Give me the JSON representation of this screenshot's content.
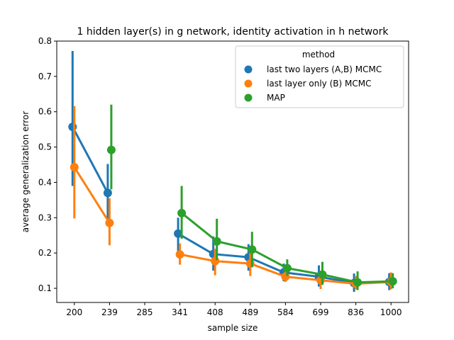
{
  "chart_data": {
    "type": "line",
    "title": "1 hidden layer(s) in g network, identity activation in h network",
    "xlabel": "sample size",
    "ylabel": "average generalization error",
    "categories": [
      "200",
      "239",
      "285",
      "341",
      "408",
      "489",
      "584",
      "699",
      "836",
      "1000"
    ],
    "ylim": [
      0.06,
      0.8
    ],
    "yticks": [
      0.1,
      0.2,
      0.3,
      0.4,
      0.5,
      0.6,
      0.7,
      0.8
    ],
    "ytick_labels": [
      "0.1",
      "0.2",
      "0.3",
      "0.4",
      "0.5",
      "0.6",
      "0.7",
      "0.8"
    ],
    "grid": false,
    "legend": {
      "title": "method",
      "placement": "top-right"
    },
    "series": [
      {
        "name": "last two layers (A,B) MCMC",
        "color": "#1f77b4",
        "values": [
          0.557,
          0.37,
          null,
          0.255,
          0.197,
          0.188,
          0.145,
          0.133,
          0.115,
          0.118
        ],
        "ci_low": [
          0.39,
          0.29,
          null,
          0.2,
          0.15,
          0.15,
          0.12,
          0.105,
          0.09,
          0.095
        ],
        "ci_high": [
          0.772,
          0.452,
          null,
          0.3,
          0.247,
          0.225,
          0.17,
          0.165,
          0.142,
          0.143
        ]
      },
      {
        "name": "last layer only (B) MCMC",
        "color": "#ff7f0e",
        "values": [
          0.443,
          0.285,
          null,
          0.196,
          0.177,
          0.17,
          0.133,
          0.123,
          0.113,
          0.118
        ],
        "ci_low": [
          0.298,
          0.222,
          null,
          0.167,
          0.137,
          0.135,
          0.118,
          0.098,
          0.097,
          0.097
        ],
        "ci_high": [
          0.616,
          0.355,
          null,
          0.227,
          0.212,
          0.205,
          0.15,
          0.15,
          0.135,
          0.145
        ]
      },
      {
        "name": "MAP",
        "color": "#2ca02c",
        "values": [
          null,
          0.492,
          null,
          0.313,
          0.233,
          0.21,
          0.157,
          0.139,
          0.117,
          0.12
        ],
        "ci_low": [
          null,
          0.38,
          null,
          0.24,
          0.18,
          0.16,
          0.135,
          0.11,
          0.095,
          0.1
        ],
        "ci_high": [
          null,
          0.62,
          null,
          0.39,
          0.297,
          0.26,
          0.182,
          0.175,
          0.148,
          0.143
        ]
      }
    ]
  }
}
